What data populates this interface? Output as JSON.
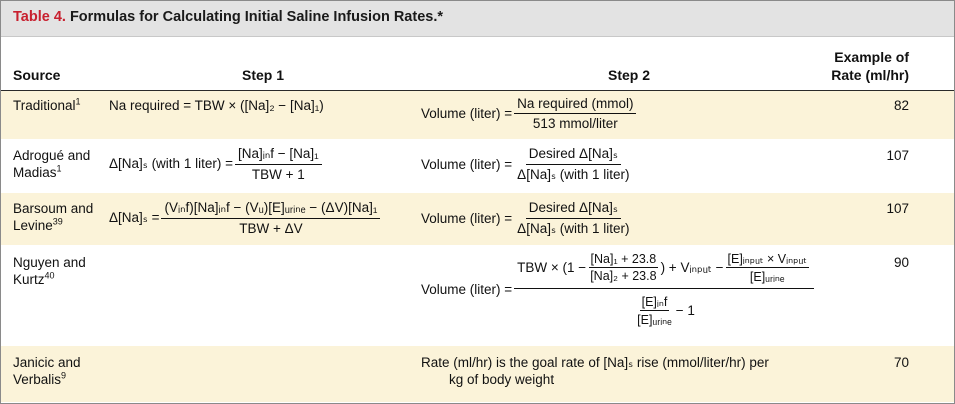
{
  "table": {
    "title_number": "Table 4.",
    "title_text": "Formulas for Calculating Initial Saline Infusion Rates.*",
    "headers": {
      "source": "Source",
      "step1": "Step 1",
      "step2": "Step 2",
      "rate_line1": "Example of",
      "rate_line2": "Rate (ml/hr)"
    },
    "rows": [
      {
        "source_line1": "Traditional",
        "source_sup": "1",
        "step1_text": "Na required = TBW × ([Na]₂ − [Na]₁)",
        "step2_lhs": "Volume (liter) =",
        "step2_num": "Na required (mmol)",
        "step2_den": "513 mmol/liter",
        "rate": "82"
      },
      {
        "source_line1": "Adrogué and",
        "source_line2": "Madias",
        "source_sup": "1",
        "step1_lhs": "Δ[Na]ₛ (with 1 liter) =",
        "step1_num": "[Na]ᵢₙf − [Na]₁",
        "step1_den": "TBW + 1",
        "step2_lhs": "Volume (liter) =",
        "step2_num": "Desired Δ[Na]ₛ",
        "step2_den": "Δ[Na]ₛ (with 1 liter)",
        "rate": "107"
      },
      {
        "source_line1": "Barsoum and",
        "source_line2": "Levine",
        "source_sup": "39",
        "step1_lhs": "Δ[Na]ₛ =",
        "step1_num": "(Vᵢₙf)[Na]ᵢₙf − (Vᵤ)[E]ᵤᵣᵢₙₑ − (ΔV)[Na]₁",
        "step1_den": "TBW + ΔV",
        "step2_lhs": "Volume (liter) =",
        "step2_num": "Desired Δ[Na]ₛ",
        "step2_den": "Δ[Na]ₛ (with 1 liter)",
        "rate": "107"
      },
      {
        "source_line1": "Nguyen and",
        "source_line2": "Kurtz",
        "source_sup": "40",
        "step2_lhs": "Volume (liter) =",
        "step2_num_a": "TBW × (1 −",
        "step2_num_b_num": "[Na]₁ + 23.8",
        "step2_num_b_den": "[Na]₂ + 23.8",
        "step2_num_c": ") + Vᵢₙₚᵤₜ −",
        "step2_num_d_num": "[E]ᵢₙₚᵤₜ × Vᵢₙₚᵤₜ",
        "step2_num_d_den": "[E]ᵤᵣᵢₙₑ",
        "step2_den_num": "[E]ᵢₙf",
        "step2_den_den": "[E]ᵤᵣᵢₙₑ",
        "step2_den_tail": "− 1",
        "rate": "90"
      },
      {
        "source_line1": "Janicic and",
        "source_line2": "Verbalis",
        "source_sup": "9",
        "step2_line1": "Rate (ml/hr) is the goal rate of [Na]ₛ rise (mmol/liter/hr) per",
        "step2_line2": "kg of body weight",
        "rate": "70"
      }
    ]
  }
}
